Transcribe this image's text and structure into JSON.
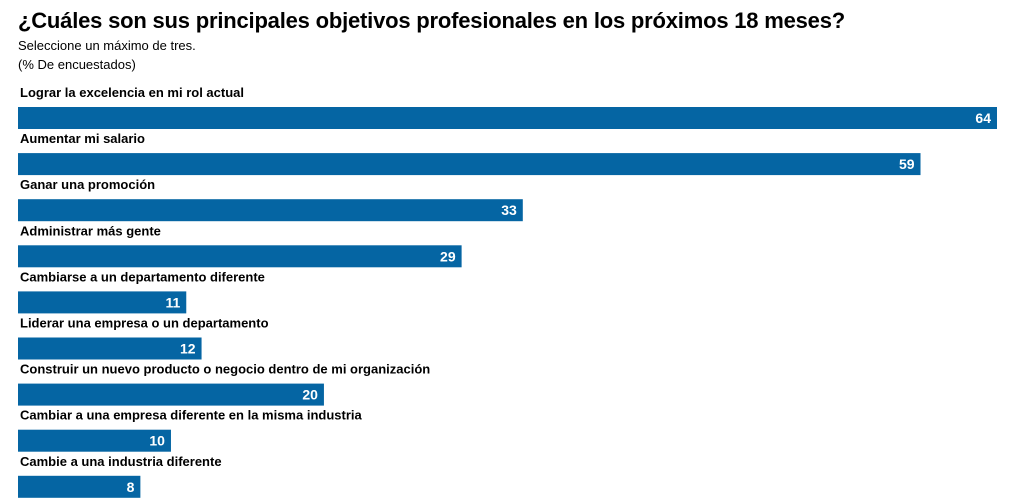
{
  "chart_data": {
    "type": "bar",
    "orientation": "horizontal",
    "title": "¿Cuáles son sus principales objetivos profesionales en los próximos 18 meses?",
    "subtitle": "Seleccione un máximo de tres.",
    "unit_note": "(% De encuestados)",
    "categories": [
      "Lograr la excelencia en mi rol actual",
      "Aumentar mi salario",
      "Ganar una promoción",
      "Administrar más gente",
      "Cambiarse a un departamento diferente",
      "Liderar una empresa o un departamento",
      "Construir un nuevo producto o negocio dentro de mi organización",
      "Cambiar a una empresa diferente en la misma industria",
      "Cambie a una industria diferente"
    ],
    "values": [
      64,
      59,
      33,
      29,
      11,
      12,
      20,
      10,
      8
    ],
    "bar_color": "#0565A3",
    "value_label_color": "#FFFFFF",
    "xlim": [
      0,
      64
    ],
    "grid": false,
    "legend": "none"
  }
}
